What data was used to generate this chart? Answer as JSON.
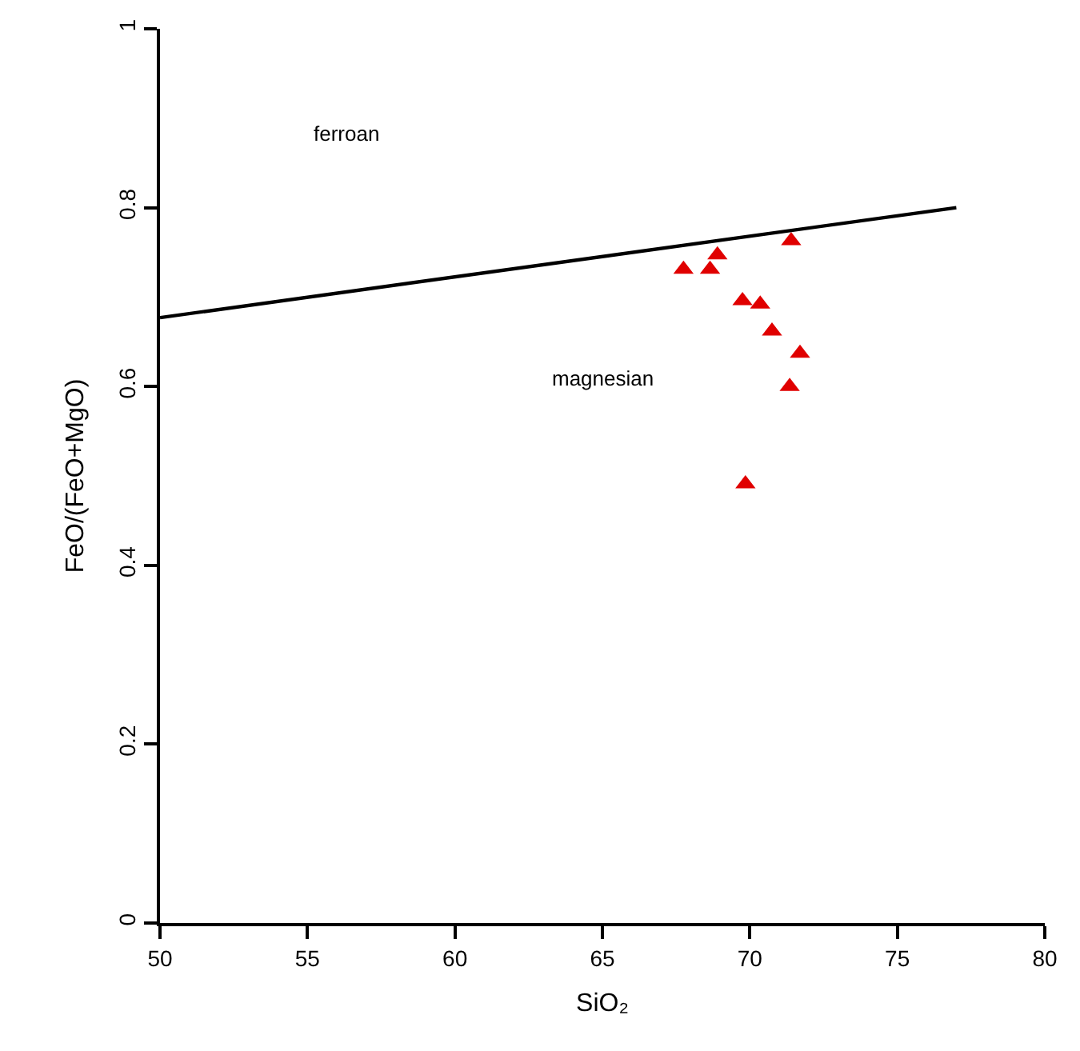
{
  "chart_data": {
    "type": "scatter",
    "xlabel": "SiO₂",
    "ylabel": "FeO/(FeO+MgO)",
    "xlim": [
      50,
      80
    ],
    "xticks": [
      50,
      55,
      60,
      65,
      70,
      75,
      80
    ],
    "ylim": [
      0,
      1
    ],
    "yticks": [
      0,
      0.2,
      0.4,
      0.6,
      0.8,
      1
    ],
    "marker": "triangle",
    "series": [
      {
        "color": "#e00000",
        "x": [
          67.75,
          68.65,
          68.9,
          69.75,
          70.35,
          70.75,
          71.4,
          71.7,
          71.35,
          69.85
        ],
        "values": [
          0.731,
          0.731,
          0.747,
          0.696,
          0.692,
          0.662,
          0.763,
          0.637,
          0.6,
          0.491
        ]
      },
      {
        "type": "line",
        "color": "#000000",
        "x": [
          50,
          77
        ],
        "values": [
          0.677,
          0.8
        ],
        "marker": "none",
        "line_style": "solid"
      }
    ],
    "annotations": [
      "ferroan",
      "magnesian"
    ]
  }
}
